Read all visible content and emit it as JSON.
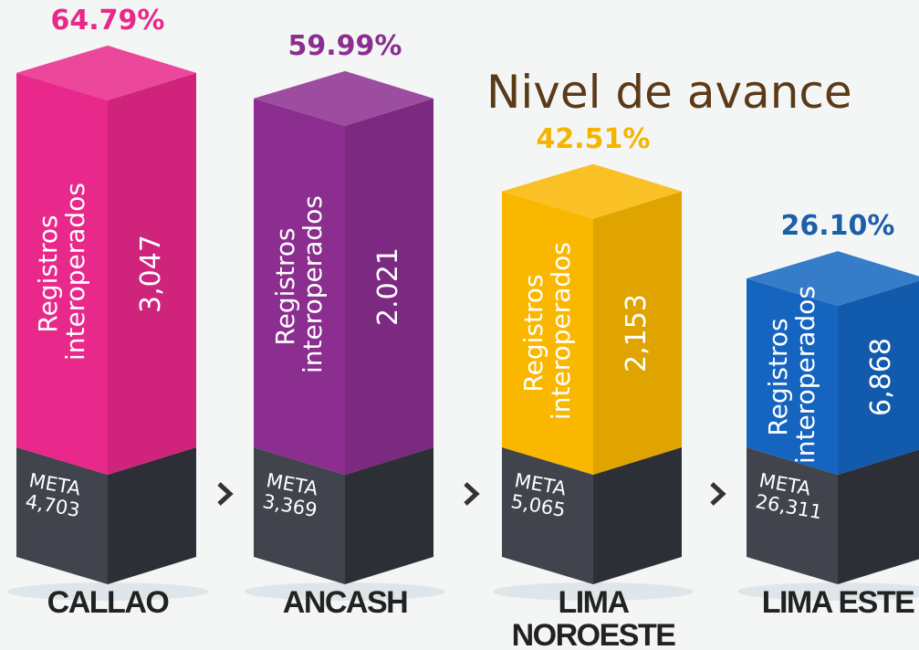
{
  "chart_data": {
    "type": "bar",
    "title": "Nivel de avance",
    "categories": [
      "CALLAO",
      "ANCASH",
      "LIMA NOROESTE",
      "LIMA ESTE"
    ],
    "values": [
      64.79,
      59.99,
      42.51,
      26.1
    ],
    "value_labels": [
      "64.79%",
      "59.99%",
      "42.51%",
      "26.10%"
    ],
    "colors": [
      "#e8288a",
      "#8b2e90",
      "#f9b700",
      "#1565c0"
    ],
    "label_colors": [
      "#e8288a",
      "#8b2e90",
      "#f4b400",
      "#1b5fa8"
    ],
    "series_label": "Registros interoperados",
    "registros": {
      "values": [
        3047,
        2021,
        2153,
        6868
      ],
      "value_labels": [
        "3,047",
        "2.021",
        "2,153",
        "6,868"
      ]
    },
    "meta_label": "META",
    "meta": {
      "values": [
        4703,
        3369,
        5065,
        26311
      ],
      "value_labels": [
        "4,703",
        "3,369",
        "5,065",
        "26,311"
      ]
    }
  }
}
